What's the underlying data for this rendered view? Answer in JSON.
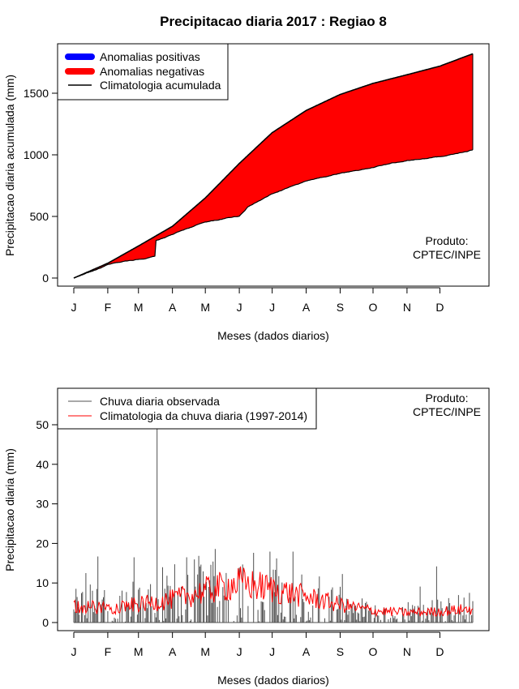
{
  "title": "Precipitacao diaria 2017 : Regiao 8",
  "colors": {
    "positive": "#0000ff",
    "negative": "#ff0000",
    "climatology": "#000000",
    "observed": "#505050",
    "daily_climatology": "#ff0000"
  },
  "chart_data": [
    {
      "type": "area",
      "title": "Precipitacao diaria 2017 : Regiao 8",
      "xlabel": "Meses (dados diarios)",
      "ylabel": "Precipitacao diaria acumulada (mm)",
      "xlim": [
        1,
        365
      ],
      "ylim": [
        0,
        1850
      ],
      "month_labels": [
        "J",
        "F",
        "M",
        "A",
        "M",
        "J",
        "J",
        "A",
        "S",
        "O",
        "N",
        "D"
      ],
      "month_days": [
        1,
        32,
        60,
        91,
        121,
        152,
        182,
        213,
        244,
        274,
        305,
        335
      ],
      "yticks": [
        0,
        500,
        1000,
        1500
      ],
      "legend": {
        "position": "top-left",
        "entries": [
          "Anomalias positivas",
          "Anomalias negativas",
          "Climatologia acumulada"
        ]
      },
      "annotation": [
        "Produto:",
        "CPTEC/INPE"
      ],
      "climatology_accumulated": {
        "x": [
          1,
          32,
          60,
          91,
          121,
          152,
          182,
          213,
          244,
          274,
          305,
          335,
          365
        ],
        "y": [
          0,
          120,
          260,
          420,
          650,
          930,
          1180,
          1360,
          1490,
          1580,
          1650,
          1720,
          1820
        ]
      },
      "observed_accumulated": {
        "x": [
          1,
          32,
          60,
          75,
          76,
          91,
          121,
          152,
          160,
          182,
          213,
          244,
          274,
          305,
          335,
          365
        ],
        "y": [
          0,
          105,
          150,
          175,
          300,
          350,
          450,
          500,
          580,
          680,
          780,
          850,
          900,
          960,
          990,
          1040
        ]
      }
    },
    {
      "type": "line",
      "xlabel": "Meses (dados diarios)",
      "ylabel": "Precipitacao diaria (mm)",
      "xlim": [
        1,
        365
      ],
      "ylim": [
        0,
        58
      ],
      "month_labels": [
        "J",
        "F",
        "M",
        "A",
        "M",
        "J",
        "J",
        "A",
        "S",
        "O",
        "N",
        "D"
      ],
      "month_days": [
        1,
        32,
        60,
        91,
        121,
        152,
        182,
        213,
        244,
        274,
        305,
        335
      ],
      "yticks": [
        0,
        10,
        20,
        30,
        40,
        50
      ],
      "legend": {
        "position": "top-left",
        "entries": [
          "Chuva diaria observada",
          "Climatologia da chuva diaria (1997-2014)"
        ]
      },
      "annotation": [
        "Produto:",
        "CPTEC/INPE"
      ],
      "observed_peaks": [
        {
          "day": 12,
          "value": 12.5
        },
        {
          "day": 23,
          "value": 16.7
        },
        {
          "day": 56,
          "value": 16.5
        },
        {
          "day": 77,
          "value": 50
        },
        {
          "day": 82,
          "value": 14
        },
        {
          "day": 186,
          "value": 16.2
        },
        {
          "day": 332,
          "value": 14.2
        }
      ],
      "daily_climatology_profile": {
        "x": [
          1,
          32,
          60,
          91,
          121,
          152,
          182,
          213,
          244,
          274,
          305,
          335,
          365
        ],
        "y": [
          4,
          3.8,
          4.5,
          5.8,
          8,
          10,
          8.5,
          6.5,
          4.5,
          3,
          2.5,
          2.8,
          3.5
        ]
      }
    }
  ]
}
